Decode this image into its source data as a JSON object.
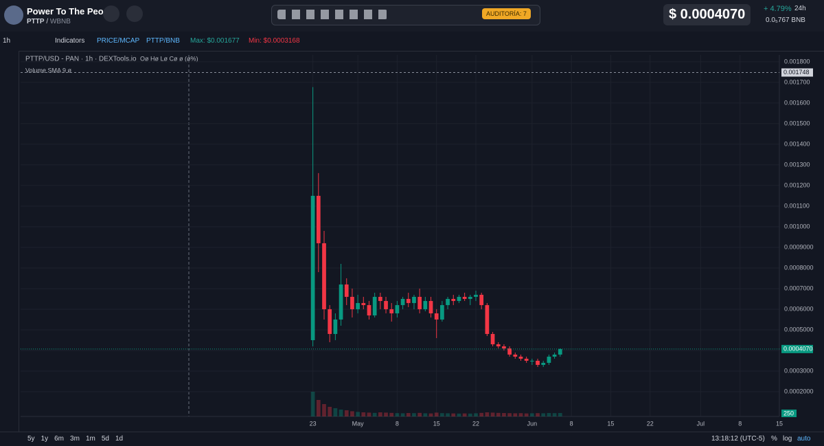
{
  "header": {
    "name": "Power To The Peo...",
    "symbol": "PTTP",
    "pair": "WBNB",
    "audit": "AUDITORÍA: 7",
    "price": "$ 0.0004070",
    "change": "+ 4.79%",
    "period": "24h",
    "bnb_price": "0.0₅767",
    "bnb": "BNB"
  },
  "toolbar": {
    "interval": "1h",
    "indicators": "Indicators",
    "price_mcap": "PRICE/MCAP",
    "pair": "PTTP/BNB",
    "max": "Max: $0.001677",
    "min": "Min: $0.0003168"
  },
  "chart_data": {
    "type": "candlestick",
    "title": "PTTP/USD - PAN · 1h · DEXTools.io",
    "ohlc_legend": "Oø Hø Lø Cø ø (ø%)",
    "volume_legend": "Volume SMA 9  ø",
    "up_color": "#089981",
    "down_color": "#f23645",
    "grid": true,
    "x": [
      "04-23",
      "04-24",
      "04-25",
      "04-26",
      "04-27",
      "04-28",
      "04-29",
      "04-30",
      "05-01",
      "05-02",
      "05-03",
      "05-04",
      "05-05",
      "05-06",
      "05-07",
      "05-08",
      "05-09",
      "05-10",
      "05-11",
      "05-12",
      "05-13",
      "05-14",
      "05-15",
      "05-16",
      "05-17",
      "05-18",
      "05-19",
      "05-20",
      "05-21",
      "05-22",
      "05-23",
      "05-24",
      "05-25",
      "05-26",
      "05-27",
      "05-28",
      "05-29",
      "05-30",
      "05-31",
      "06-01",
      "06-02",
      "06-03",
      "06-04",
      "06-05",
      "06-06"
    ],
    "open": [
      0.00045,
      0.00115,
      0.00092,
      0.0006,
      0.00048,
      0.00055,
      0.00072,
      0.00066,
      0.0006,
      0.00063,
      0.00062,
      0.00057,
      0.00066,
      0.00064,
      0.0006,
      0.00058,
      0.00062,
      0.00065,
      0.00063,
      0.00066,
      0.0006,
      0.00064,
      0.00058,
      0.00055,
      0.00062,
      0.00065,
      0.00064,
      0.00066,
      0.00065,
      0.00066,
      0.00067,
      0.00062,
      0.00048,
      0.00043,
      0.00042,
      0.00041,
      0.00038,
      0.00037,
      0.00036,
      0.00035,
      0.00035,
      0.00033,
      0.00034,
      0.00037,
      0.00038
    ],
    "high": [
      0.001677,
      0.00126,
      0.00098,
      0.00062,
      0.00058,
      0.00082,
      0.00075,
      0.0007,
      0.00067,
      0.00066,
      0.00064,
      0.00068,
      0.00068,
      0.00066,
      0.00063,
      0.00064,
      0.00066,
      0.00068,
      0.00067,
      0.0007,
      0.00066,
      0.00066,
      0.0006,
      0.00064,
      0.00066,
      0.00067,
      0.00067,
      0.00068,
      0.00067,
      0.00069,
      0.00068,
      0.00063,
      0.00049,
      0.00044,
      0.00043,
      0.00042,
      0.00039,
      0.00038,
      0.00037,
      0.00036,
      0.00036,
      0.00035,
      0.00038,
      0.00039,
      0.00041
    ],
    "low": [
      0.00042,
      0.00078,
      0.00055,
      0.00044,
      0.00045,
      0.00052,
      0.00062,
      0.00056,
      0.00058,
      0.0006,
      0.00055,
      0.00056,
      0.0006,
      0.00058,
      0.00054,
      0.00056,
      0.0006,
      0.00061,
      0.0006,
      0.00058,
      0.00059,
      0.00056,
      0.00046,
      0.00054,
      0.0006,
      0.00062,
      0.00063,
      0.00064,
      0.00062,
      0.00064,
      0.0006,
      0.00047,
      0.00042,
      0.00041,
      0.0004,
      0.00037,
      0.00036,
      0.00035,
      0.00034,
      0.00033,
      0.00032,
      0.00032,
      0.00033,
      0.00036,
      0.00037
    ],
    "close": [
      0.00115,
      0.00092,
      0.0006,
      0.00048,
      0.00055,
      0.00072,
      0.00066,
      0.0006,
      0.00063,
      0.00062,
      0.00057,
      0.00066,
      0.00064,
      0.0006,
      0.00058,
      0.00062,
      0.00065,
      0.00063,
      0.00066,
      0.0006,
      0.00064,
      0.00058,
      0.00055,
      0.00062,
      0.00065,
      0.00064,
      0.00066,
      0.00065,
      0.00066,
      0.00067,
      0.00062,
      0.00048,
      0.00043,
      0.00042,
      0.00041,
      0.00038,
      0.00037,
      0.00036,
      0.00035,
      0.00035,
      0.00033,
      0.00034,
      0.00037,
      0.00038,
      0.000407
    ],
    "volume": [
      1800,
      1200,
      900,
      700,
      600,
      500,
      450,
      380,
      330,
      300,
      280,
      260,
      300,
      280,
      260,
      240,
      230,
      250,
      240,
      260,
      230,
      220,
      280,
      240,
      230,
      220,
      210,
      220,
      210,
      230,
      260,
      300,
      280,
      260,
      250,
      240,
      230,
      240,
      220,
      230,
      240,
      230,
      250,
      240,
      250
    ],
    "vlim": [
      0,
      3000
    ],
    "xlim": [
      "03-02",
      "07-15"
    ],
    "xticks": [
      {
        "value": "04-23",
        "label": "23"
      },
      {
        "value": "05-01",
        "label": "May"
      },
      {
        "value": "05-08",
        "label": "8"
      },
      {
        "value": "05-15",
        "label": "15"
      },
      {
        "value": "05-22",
        "label": "22"
      },
      {
        "value": "06-01",
        "label": "Jun"
      },
      {
        "value": "06-08",
        "label": "8"
      },
      {
        "value": "06-15",
        "label": "15"
      },
      {
        "value": "06-22",
        "label": "22"
      },
      {
        "value": "07-01",
        "label": "Jul"
      },
      {
        "value": "07-08",
        "label": "8"
      },
      {
        "value": "07-15",
        "label": "15"
      }
    ],
    "ylim": [
      8e-05,
      0.001833
    ],
    "yticks": [
      {
        "value": 0.0002,
        "label": "0.0002000"
      },
      {
        "value": 0.0003,
        "label": "0.0003000"
      },
      {
        "value": 0.0004,
        "label": "0.0004000"
      },
      {
        "value": 0.0005,
        "label": "0.0005000"
      },
      {
        "value": 0.0006,
        "label": "0.0006000"
      },
      {
        "value": 0.0007,
        "label": "0.0007000"
      },
      {
        "value": 0.0008,
        "label": "0.0008000"
      },
      {
        "value": 0.0009,
        "label": "0.0009000"
      },
      {
        "value": 0.001,
        "label": "0.001000"
      },
      {
        "value": 0.0011,
        "label": "0.001100"
      },
      {
        "value": 0.0012,
        "label": "0.001200"
      },
      {
        "value": 0.0013,
        "label": "0.001300"
      },
      {
        "value": 0.0014,
        "label": "0.001400"
      },
      {
        "value": 0.0015,
        "label": "0.001500"
      },
      {
        "value": 0.0016,
        "label": "0.001600"
      },
      {
        "value": 0.0017,
        "label": "0.001700"
      },
      {
        "value": 0.0018,
        "label": "0.001800"
      }
    ],
    "markers": [
      {
        "value": 0.001748,
        "label": "0.001748"
      },
      {
        "value": 0.000407,
        "label": "0.0004070"
      }
    ]
  },
  "footer": {
    "ranges": [
      "5y",
      "1y",
      "6m",
      "3m",
      "1m",
      "5d",
      "1d"
    ],
    "time": "13:18:12 (UTC-5)",
    "percent": "%",
    "log": "log",
    "auto": "auto"
  }
}
